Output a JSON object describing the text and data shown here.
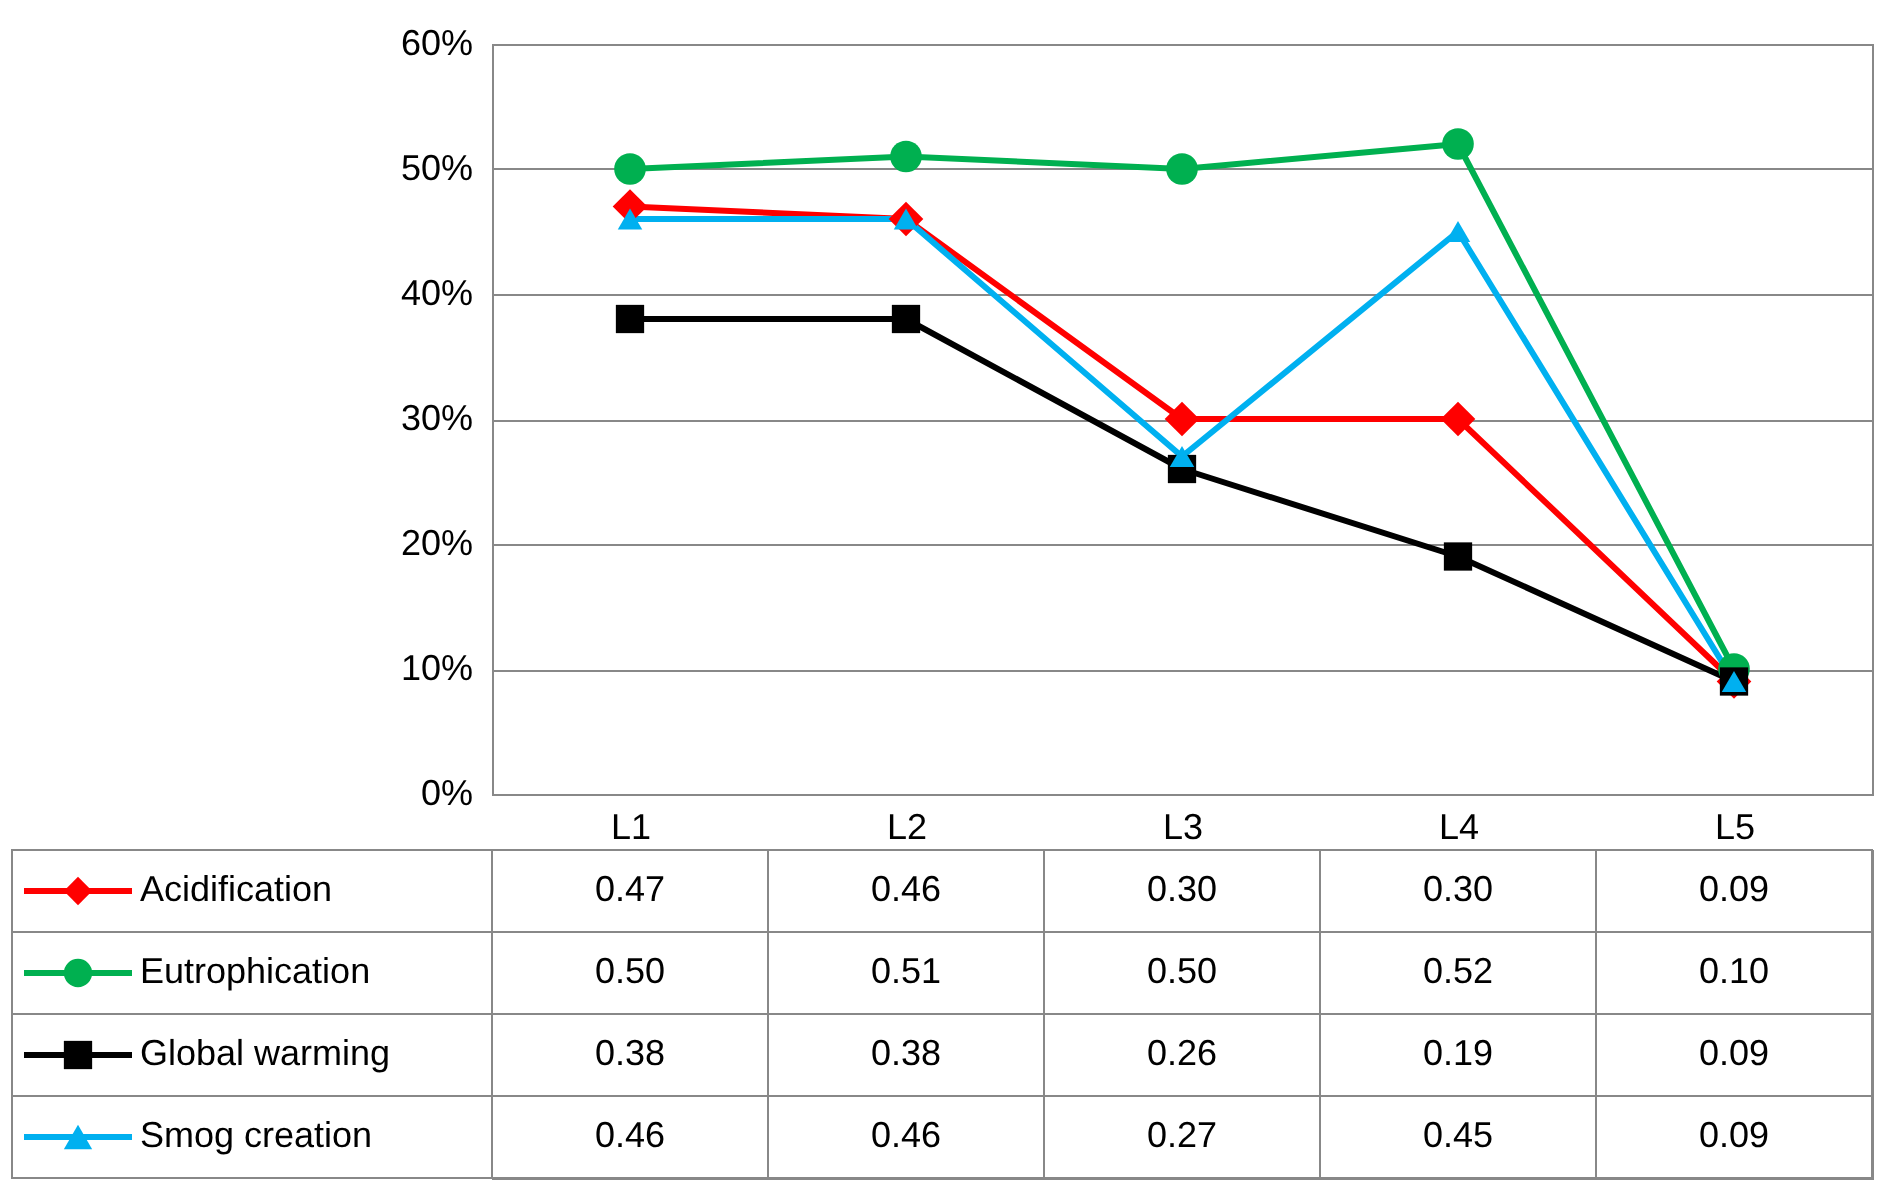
{
  "chart_data": {
    "type": "line",
    "categories": [
      "L1",
      "L2",
      "L3",
      "L4",
      "L5"
    ],
    "series": [
      {
        "name": "Acidification",
        "color": "#ff0000",
        "marker": "diamond",
        "values": [
          0.47,
          0.46,
          0.3,
          0.3,
          0.09
        ],
        "value_labels": [
          "0.47",
          "0.46",
          "0.30",
          "0.30",
          "0.09"
        ]
      },
      {
        "name": "Eutrophication",
        "color": "#00b050",
        "marker": "circle",
        "values": [
          0.5,
          0.51,
          0.5,
          0.52,
          0.1
        ],
        "value_labels": [
          "0.50",
          "0.51",
          "0.50",
          "0.52",
          "0.10"
        ]
      },
      {
        "name": "Global warming",
        "color": "#000000",
        "marker": "square",
        "values": [
          0.38,
          0.38,
          0.26,
          0.19,
          0.09
        ],
        "value_labels": [
          "0.38",
          "0.38",
          "0.26",
          "0.19",
          "0.09"
        ]
      },
      {
        "name": "Smog creation",
        "color": "#00b0f0",
        "marker": "triangle",
        "values": [
          0.46,
          0.46,
          0.27,
          0.45,
          0.09
        ],
        "value_labels": [
          "0.46",
          "0.46",
          "0.27",
          "0.45",
          "0.09"
        ]
      }
    ],
    "ylim": [
      0,
      0.6
    ],
    "yticks": [
      {
        "value": 0,
        "label": "0%"
      },
      {
        "value": 0.1,
        "label": "10%"
      },
      {
        "value": 0.2,
        "label": "20%"
      },
      {
        "value": 0.3,
        "label": "30%"
      },
      {
        "value": 0.4,
        "label": "40%"
      },
      {
        "value": 0.5,
        "label": "50%"
      },
      {
        "value": 0.6,
        "label": "60%"
      }
    ],
    "grid": "y",
    "legend": "bottom",
    "line_style": "solid"
  }
}
